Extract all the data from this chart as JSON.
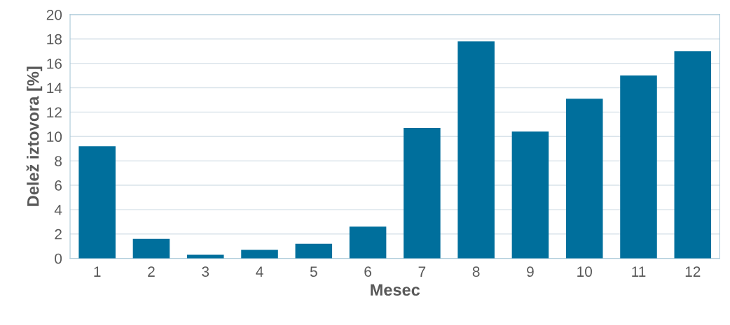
{
  "chart_data": {
    "type": "bar",
    "xlabel": "Mesec",
    "ylabel": "Delež iztovora [%]",
    "categories": [
      "1",
      "2",
      "3",
      "4",
      "5",
      "6",
      "7",
      "8",
      "9",
      "10",
      "11",
      "12"
    ],
    "values": [
      9.2,
      1.6,
      0.3,
      0.7,
      1.2,
      2.6,
      10.7,
      17.8,
      10.4,
      13.1,
      15.0,
      17.0
    ],
    "color": "#006f9c",
    "ylim": [
      0,
      20
    ],
    "yticks": [
      0,
      2,
      4,
      6,
      8,
      10,
      12,
      14,
      16,
      18,
      20
    ],
    "grid": "y"
  }
}
